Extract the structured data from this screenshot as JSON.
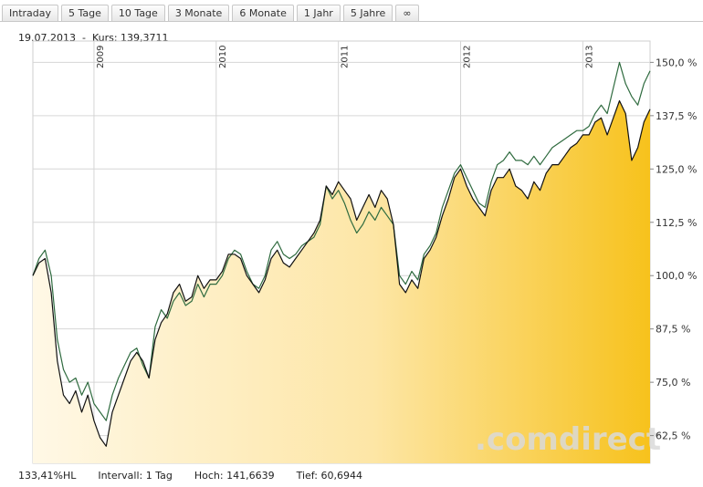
{
  "tabs": [
    "Intraday",
    "5 Tage",
    "10 Tage",
    "3 Monate",
    "6 Monate",
    "1 Jahr",
    "5 Jahre",
    "∞"
  ],
  "info": {
    "date": "19.07.2013",
    "sep": "-",
    "kurs": "Kurs: 139,3711"
  },
  "footer": {
    "change": "133,41%HL",
    "interval": "Intervall: 1 Tag",
    "high": "Hoch: 141,6639",
    "low": "Tief: 60,6944"
  },
  "watermark": ".comdirect",
  "colors": {
    "main_line": "#111111",
    "compare_line": "#2f6b3f",
    "fill_light": "#fff8e6",
    "fill_dark": "#f7c21c",
    "watermark": "#d9d9d9"
  },
  "chart_data": {
    "type": "line",
    "x_range": [
      "2008-07",
      "2013-07"
    ],
    "year_labels": [
      "2009",
      "2010",
      "2011",
      "2012",
      "2013"
    ],
    "year_positions": [
      2009,
      2010,
      2011,
      2012,
      2013
    ],
    "ylim": [
      56,
      155
    ],
    "yticks": [
      62.5,
      75,
      87.5,
      100,
      112.5,
      125,
      137.5,
      150
    ],
    "ytick_labels": [
      "62,5 %",
      "75,0 %",
      "87,5 %",
      "100,0 %",
      "112,5 %",
      "125,0 %",
      "137,5 %",
      "150,0 %"
    ],
    "grid": true,
    "series": [
      {
        "x": [
          2008.5,
          2008.55,
          2008.6,
          2008.65,
          2008.7,
          2008.75,
          2008.8,
          2008.85,
          2008.9,
          2008.95,
          2009.0,
          2009.05,
          2009.1,
          2009.15,
          2009.2,
          2009.25,
          2009.3,
          2009.35,
          2009.4,
          2009.45,
          2009.5,
          2009.55,
          2009.6,
          2009.65,
          2009.7,
          2009.75,
          2009.8,
          2009.85,
          2009.9,
          2009.95,
          2010.0,
          2010.05,
          2010.1,
          2010.15,
          2010.2,
          2010.25,
          2010.3,
          2010.35,
          2010.4,
          2010.45,
          2010.5,
          2010.55,
          2010.6,
          2010.65,
          2010.7,
          2010.75,
          2010.8,
          2010.85,
          2010.9,
          2010.95,
          2011.0,
          2011.05,
          2011.1,
          2011.15,
          2011.2,
          2011.25,
          2011.3,
          2011.35,
          2011.4,
          2011.45,
          2011.5,
          2011.55,
          2011.6,
          2011.65,
          2011.7,
          2011.75,
          2011.8,
          2011.85,
          2011.9,
          2011.95,
          2012.0,
          2012.05,
          2012.1,
          2012.15,
          2012.2,
          2012.25,
          2012.3,
          2012.35,
          2012.4,
          2012.45,
          2012.5,
          2012.55,
          2012.6,
          2012.65,
          2012.7,
          2012.75,
          2012.8,
          2012.85,
          2012.9,
          2012.95,
          2013.0,
          2013.05,
          2013.1,
          2013.15,
          2013.2,
          2013.25,
          2013.3,
          2013.35,
          2013.4,
          2013.45,
          2013.5,
          2013.55
        ],
        "values": [
          100,
          103,
          104,
          96,
          80,
          72,
          70,
          73,
          68,
          72,
          66,
          62,
          60,
          68,
          72,
          76,
          80,
          82,
          80,
          76,
          85,
          89,
          91,
          96,
          98,
          94,
          95,
          100,
          97,
          99,
          99,
          101,
          105,
          105,
          104,
          100,
          98,
          96,
          99,
          104,
          106,
          103,
          102,
          104,
          106,
          108,
          110,
          113,
          121,
          119,
          122,
          120,
          118,
          113,
          116,
          119,
          116,
          120,
          118,
          112,
          98,
          96,
          99,
          97,
          104,
          106,
          109,
          114,
          118,
          123,
          125,
          121,
          118,
          116,
          114,
          120,
          123,
          123,
          125,
          121,
          120,
          118,
          122,
          120,
          124,
          126,
          126,
          128,
          130,
          131,
          133,
          133,
          136,
          137,
          133,
          137,
          141,
          138,
          127,
          130,
          136,
          139
        ]
      },
      {
        "x": [
          2008.5,
          2008.55,
          2008.6,
          2008.65,
          2008.7,
          2008.75,
          2008.8,
          2008.85,
          2008.9,
          2008.95,
          2009.0,
          2009.05,
          2009.1,
          2009.15,
          2009.2,
          2009.25,
          2009.3,
          2009.35,
          2009.4,
          2009.45,
          2009.5,
          2009.55,
          2009.6,
          2009.65,
          2009.7,
          2009.75,
          2009.8,
          2009.85,
          2009.9,
          2009.95,
          2010.0,
          2010.05,
          2010.1,
          2010.15,
          2010.2,
          2010.25,
          2010.3,
          2010.35,
          2010.4,
          2010.45,
          2010.5,
          2010.55,
          2010.6,
          2010.65,
          2010.7,
          2010.75,
          2010.8,
          2010.85,
          2010.9,
          2010.95,
          2011.0,
          2011.05,
          2011.1,
          2011.15,
          2011.2,
          2011.25,
          2011.3,
          2011.35,
          2011.4,
          2011.45,
          2011.5,
          2011.55,
          2011.6,
          2011.65,
          2011.7,
          2011.75,
          2011.8,
          2011.85,
          2011.9,
          2011.95,
          2012.0,
          2012.05,
          2012.1,
          2012.15,
          2012.2,
          2012.25,
          2012.3,
          2012.35,
          2012.4,
          2012.45,
          2012.5,
          2012.55,
          2012.6,
          2012.65,
          2012.7,
          2012.75,
          2012.8,
          2012.85,
          2012.9,
          2012.95,
          2013.0,
          2013.05,
          2013.1,
          2013.15,
          2013.2,
          2013.25,
          2013.3,
          2013.35,
          2013.4,
          2013.45,
          2013.5,
          2013.55
        ],
        "values": [
          100,
          104,
          106,
          100,
          85,
          78,
          75,
          76,
          72,
          75,
          70,
          68,
          66,
          72,
          76,
          79,
          82,
          83,
          79,
          76,
          88,
          92,
          90,
          94,
          96,
          93,
          94,
          98,
          95,
          98,
          98,
          100,
          104,
          106,
          105,
          101,
          98,
          97,
          100,
          106,
          108,
          105,
          104,
          105,
          107,
          108,
          109,
          112,
          121,
          118,
          120,
          117,
          113,
          110,
          112,
          115,
          113,
          116,
          114,
          112,
          100,
          98,
          101,
          99,
          105,
          107,
          110,
          116,
          120,
          124,
          126,
          123,
          120,
          117,
          116,
          122,
          126,
          127,
          129,
          127,
          127,
          126,
          128,
          126,
          128,
          130,
          131,
          132,
          133,
          134,
          134,
          135,
          138,
          140,
          138,
          144,
          150,
          145,
          142,
          140,
          145,
          148
        ]
      }
    ]
  }
}
